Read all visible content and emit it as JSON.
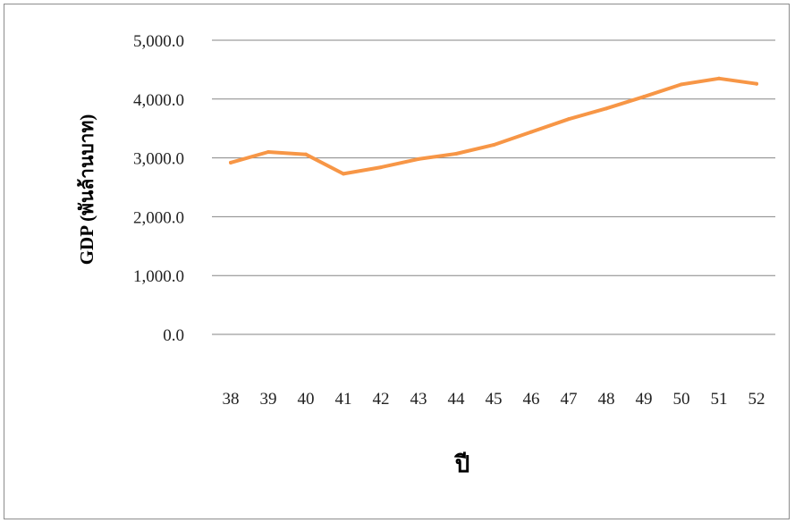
{
  "chart_data": {
    "type": "line",
    "title": "",
    "xlabel": "ปี",
    "ylabel": "GDP (พันล้านบาท)",
    "x": [
      "38",
      "39",
      "40",
      "41",
      "42",
      "43",
      "44",
      "45",
      "46",
      "47",
      "48",
      "49",
      "50",
      "51",
      "52"
    ],
    "series": [
      {
        "values": [
          2920,
          3100,
          3060,
          2730,
          2840,
          2980,
          3070,
          3220,
          3440,
          3660,
          3840,
          4040,
          4250,
          4350,
          4260
        ],
        "color": "#f79646"
      }
    ],
    "ylim": [
      0,
      5000
    ],
    "yticks": [
      0,
      1000,
      2000,
      3000,
      4000,
      5000
    ],
    "ytick_labels": [
      "0.0",
      "1,000.0",
      "2,000.0",
      "3,000.0",
      "4,000.0",
      "5,000.0"
    ],
    "grid": true,
    "legend": "none"
  }
}
